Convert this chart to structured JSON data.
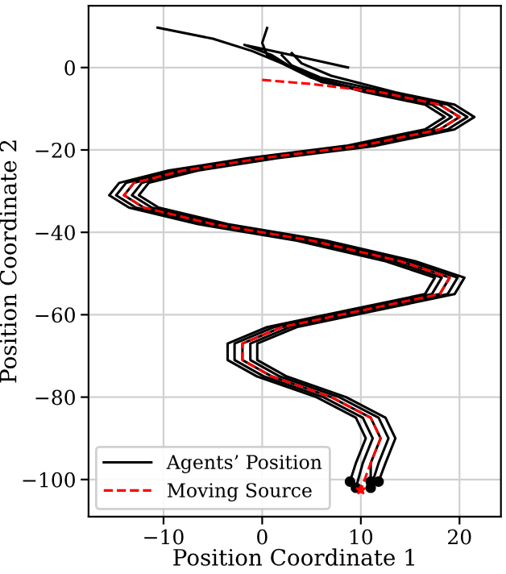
{
  "chart_data": {
    "type": "line",
    "xlabel": "Position Coordinate 1",
    "ylabel": "Position Coordinate 2",
    "xlim": [
      -17.6,
      24.2
    ],
    "ylim": [
      -109,
      15
    ],
    "xticks": [
      {
        "value": -10,
        "label": "−10"
      },
      0,
      10,
      20
    ],
    "yticks": [
      0,
      {
        "value": -20,
        "label": "−20"
      },
      {
        "value": -40,
        "label": "−40"
      },
      {
        "value": -60,
        "label": "−60"
      },
      {
        "value": -80,
        "label": "−80"
      },
      {
        "value": -100,
        "label": "−100"
      }
    ],
    "grid": true,
    "legend": "bottom left",
    "series": [
      {
        "name": "Agents’ Position",
        "color": "#000000",
        "line_style": "solid",
        "x": [
          -10.6,
          -5,
          -1,
          2,
          5,
          10.5,
          16.5,
          18.5,
          16.5,
          8.5,
          -1.5,
          -9.5,
          -14.5,
          -15.5,
          -13.5,
          -6.5,
          3.5,
          12.5,
          17.5,
          16.5,
          8.5,
          0.5,
          -3.5,
          -3.5,
          -0.5,
          5.5,
          9.5,
          10.5,
          9.5,
          8.9
        ],
        "values": [
          9.7,
          7,
          4,
          1,
          -2.5,
          -6,
          -9,
          -12,
          -15,
          -19,
          -22,
          -25,
          -28,
          -31,
          -34,
          -38,
          -42,
          -47,
          -51,
          -55,
          -59,
          -63,
          -67,
          -71,
          -75,
          -80,
          -85,
          -90,
          -96,
          -100.5
        ]
      },
      {
        "color": "#000000",
        "line_style": "solid",
        "x": [
          0.5,
          0,
          0.5,
          3,
          6,
          11.2,
          17.2,
          19.2,
          17.2,
          9.2,
          -0.8,
          -8.8,
          -13.8,
          -14.8,
          -12.8,
          -5.8,
          4.2,
          13.2,
          18.2,
          17.2,
          9.2,
          1.2,
          -2.8,
          -2.8,
          0.2,
          6.2,
          10.2,
          11.2,
          10.2,
          9.5
        ],
        "values": [
          9.6,
          6,
          3,
          0,
          -3,
          -6,
          -9,
          -12,
          -15,
          -19,
          -22,
          -25,
          -28,
          -31,
          -34,
          -38,
          -42,
          -47,
          -51,
          -55,
          -59,
          -63,
          -67,
          -71,
          -75,
          -80,
          -85,
          -90,
          -96,
          -102
        ]
      },
      {
        "color": "#000000",
        "line_style": "solid",
        "x": [
          8.7,
          4,
          -1.8,
          1,
          3,
          6,
          12,
          18,
          20,
          18,
          10,
          0,
          -8,
          -13,
          -14,
          -12,
          -5,
          5,
          14,
          19,
          18,
          10,
          2,
          -2,
          -2,
          1,
          7,
          11,
          12,
          11,
          11
        ],
        "values": [
          0,
          2.5,
          5.5,
          3,
          0,
          -3.5,
          -6,
          -9,
          -12,
          -15,
          -19,
          -22,
          -25,
          -28,
          -31,
          -34,
          -38,
          -42,
          -47,
          -51,
          -55,
          -59,
          -63,
          -67,
          -71,
          -75,
          -80,
          -85,
          -90,
          -96,
          -100.5
        ]
      },
      {
        "color": "#000000",
        "line_style": "solid",
        "x": [
          2,
          3,
          6,
          12.8,
          18.8,
          20.8,
          18.8,
          10.8,
          0.8,
          -7.2,
          -12.2,
          -13.2,
          -11.2,
          -4.2,
          5.8,
          14.8,
          19.8,
          18.8,
          10.8,
          2.8,
          -1.2,
          -1.2,
          1.8,
          7.8,
          11.8,
          12.8,
          11.8,
          11
        ],
        "values": [
          3,
          0.5,
          -2.5,
          -6,
          -9,
          -12,
          -15,
          -19,
          -22,
          -25,
          -28,
          -31,
          -34,
          -38,
          -42,
          -47,
          -51,
          -55,
          -59,
          -63,
          -67,
          -71,
          -75,
          -80,
          -85,
          -90,
          -96,
          -102
        ]
      },
      {
        "color": "#000000",
        "line_style": "solid",
        "x": [
          3,
          4,
          7,
          13.5,
          19.5,
          21.5,
          19.5,
          11.5,
          1.5,
          -6.5,
          -11.5,
          -12.5,
          -10.5,
          -3.5,
          6.5,
          15.5,
          20.5,
          19.5,
          11.5,
          3.5,
          -0.5,
          -0.5,
          2.5,
          8.5,
          12.5,
          13.5,
          12.5,
          11.8
        ],
        "values": [
          3.5,
          1,
          -2,
          -6,
          -9,
          -12,
          -15,
          -19,
          -22,
          -25,
          -28,
          -31,
          -34,
          -38,
          -42,
          -47,
          -51,
          -55,
          -59,
          -63,
          -67,
          -71,
          -75,
          -80,
          -85,
          -90,
          -96,
          -100.5
        ]
      },
      {
        "name": "Moving Source",
        "color": "#ff0000",
        "line_style": "dashed",
        "x": [
          0,
          5,
          12,
          18,
          20,
          18,
          10,
          0,
          -8,
          -13,
          -14,
          -12,
          -5,
          5,
          14,
          19,
          18,
          10,
          2,
          -2,
          -2,
          1,
          7,
          11,
          12,
          11,
          10
        ],
        "values": [
          -3,
          -4,
          -6,
          -9,
          -12,
          -15,
          -19,
          -22,
          -25,
          -28,
          -31,
          -34,
          -38,
          -42,
          -47,
          -51,
          -55,
          -59,
          -63,
          -67,
          -71,
          -75,
          -80,
          -85,
          -90,
          -96,
          -102.5
        ]
      },
      {
        "type": "scatter",
        "color": "#000000",
        "marker": "circle",
        "x": [
          8.9,
          9.5,
          11,
          11,
          11.8
        ],
        "values": [
          -100.5,
          -102,
          -100.5,
          -102,
          -100.5
        ]
      },
      {
        "type": "scatter",
        "color": "#ff0000",
        "marker": "star",
        "x": [
          10
        ],
        "values": [
          -102.5
        ]
      }
    ]
  }
}
